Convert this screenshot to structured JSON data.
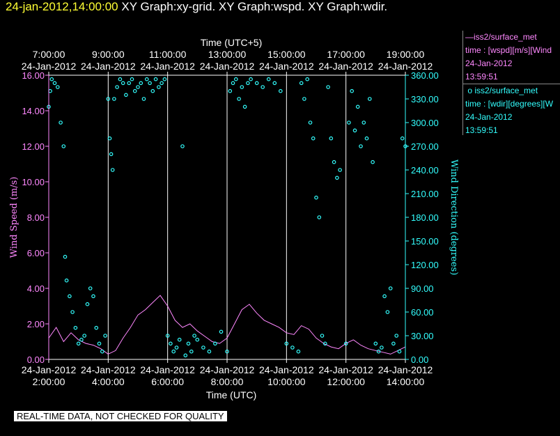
{
  "header": {
    "timestamp": "24-jan-2012,14:00:00",
    "graph_titles": [
      "XY Graph:xy-grid.",
      "XY Graph:wspd.",
      "XY Graph:wdir."
    ]
  },
  "quality_banner": "REAL-TIME DATA, NOT CHECKED FOR QUALITY",
  "legend": {
    "wspd": {
      "title": "iss2/surface_met",
      "expr": "time : [wspd][m/s][Wind",
      "date": "24-Jan-2012",
      "time": "13:59:51"
    },
    "wdir": {
      "title": "iss2/surface_met",
      "expr": "time : [wdir][degrees][W",
      "date": "24-Jan-2012",
      "time": "13:59:51"
    }
  },
  "colors": {
    "wspd": "#ff88ff",
    "wdir": "#33ffff",
    "grid": "#ffffff",
    "background": "#000000"
  },
  "chart_data": {
    "type": "line",
    "top_axis": {
      "label": "Time (UTC+5)",
      "ticks": [
        {
          "time": "7:00:00",
          "date": "24-Jan-2012"
        },
        {
          "time": "9:00:00",
          "date": "24-Jan-2012"
        },
        {
          "time": "11:00:00",
          "date": "24-Jan-2012"
        },
        {
          "time": "13:00:00",
          "date": "24-Jan-2012"
        },
        {
          "time": "15:00:00",
          "date": "24-Jan-2012"
        },
        {
          "time": "17:00:00",
          "date": "24-Jan-2012"
        },
        {
          "time": "19:00:00",
          "date": "24-Jan-2012"
        }
      ]
    },
    "bottom_axis": {
      "label": "Time (UTC)",
      "ticks": [
        {
          "time": "2:00:00",
          "date": "24-Jan-2012"
        },
        {
          "time": "4:00:00",
          "date": "24-Jan-2012"
        },
        {
          "time": "6:00:00",
          "date": "24-Jan-2012"
        },
        {
          "time": "8:00:00",
          "date": "24-Jan-2012"
        },
        {
          "time": "10:00:00",
          "date": "24-Jan-2012"
        },
        {
          "time": "12:00:00",
          "date": "24-Jan-2012"
        },
        {
          "time": "14:00:00",
          "date": "24-Jan-2012"
        }
      ]
    },
    "xlim_utc_hours": [
      2,
      14
    ],
    "left_axis": {
      "label": "Wind Speed (m/s)",
      "range": [
        0,
        16
      ],
      "ticks": [
        "0.00",
        "2.00",
        "4.00",
        "6.00",
        "8.00",
        "10.00",
        "12.00",
        "14.00",
        "16.00"
      ]
    },
    "right_axis": {
      "label": "Wind Direction (degrees)",
      "range": [
        0,
        360
      ],
      "ticks": [
        "0.00",
        "30.00",
        "60.00",
        "90.00",
        "120.00",
        "150.00",
        "180.00",
        "210.00",
        "240.00",
        "270.00",
        "300.00",
        "330.00",
        "360.00"
      ]
    },
    "grid_vertical_hours": [
      4,
      6,
      8,
      10,
      12
    ],
    "series": [
      {
        "name": "iss2/surface_met wspd",
        "style": "line",
        "unit": "m/s",
        "x": [
          2.0,
          2.25,
          2.5,
          2.75,
          3.0,
          3.25,
          3.5,
          3.75,
          4.0,
          4.25,
          4.5,
          4.75,
          5.0,
          5.25,
          5.5,
          5.75,
          6.0,
          6.25,
          6.5,
          6.75,
          7.0,
          7.25,
          7.5,
          7.75,
          8.0,
          8.25,
          8.5,
          8.75,
          9.0,
          9.25,
          9.5,
          9.75,
          10.0,
          10.25,
          10.5,
          10.75,
          11.0,
          11.25,
          11.5,
          11.75,
          12.0,
          12.25,
          12.5,
          12.75,
          13.0,
          13.25,
          13.5,
          13.75,
          14.0
        ],
        "y": [
          1.2,
          1.8,
          1.0,
          1.5,
          1.1,
          0.9,
          0.8,
          0.6,
          0.3,
          0.5,
          1.2,
          1.8,
          2.5,
          2.8,
          3.2,
          3.6,
          3.0,
          2.2,
          1.8,
          2.0,
          1.6,
          1.3,
          1.0,
          0.9,
          1.2,
          2.0,
          2.8,
          3.1,
          2.6,
          2.2,
          2.0,
          1.8,
          1.5,
          1.4,
          1.9,
          1.7,
          1.2,
          0.9,
          0.7,
          0.6,
          0.9,
          1.1,
          0.8,
          0.6,
          0.5,
          0.4,
          0.3,
          0.5,
          0.7
        ]
      },
      {
        "name": "iss2/surface_met wdir",
        "style": "markers",
        "unit": "degrees",
        "x": [
          2.0,
          2.05,
          2.1,
          2.2,
          2.3,
          2.4,
          2.5,
          2.55,
          2.6,
          2.7,
          2.8,
          2.9,
          3.0,
          3.1,
          3.2,
          3.3,
          3.4,
          3.5,
          3.6,
          3.7,
          3.8,
          3.9,
          4.0,
          4.05,
          4.1,
          4.15,
          4.2,
          4.3,
          4.4,
          4.5,
          4.6,
          4.7,
          4.8,
          4.9,
          5.0,
          5.1,
          5.2,
          5.3,
          5.4,
          5.5,
          5.6,
          5.7,
          5.8,
          5.9,
          6.0,
          6.1,
          6.2,
          6.3,
          6.4,
          6.5,
          6.6,
          6.7,
          6.8,
          6.9,
          7.0,
          7.2,
          7.4,
          7.6,
          7.8,
          8.0,
          8.1,
          8.2,
          8.3,
          8.4,
          8.5,
          8.6,
          8.7,
          8.8,
          9.0,
          9.2,
          9.4,
          9.6,
          9.8,
          10.0,
          10.2,
          10.4,
          10.5,
          10.6,
          10.7,
          10.8,
          10.9,
          11.0,
          11.1,
          11.2,
          11.3,
          11.4,
          11.5,
          11.6,
          11.7,
          11.8,
          12.0,
          12.1,
          12.2,
          12.3,
          12.4,
          12.5,
          12.6,
          12.7,
          12.8,
          12.9,
          13.0,
          13.1,
          13.2,
          13.3,
          13.4,
          13.5,
          13.6,
          13.7,
          13.8,
          13.9,
          14.0
        ],
        "y": [
          320,
          340,
          355,
          350,
          345,
          300,
          270,
          130,
          100,
          80,
          60,
          40,
          20,
          25,
          30,
          70,
          90,
          80,
          40,
          20,
          10,
          30,
          330,
          280,
          260,
          240,
          330,
          345,
          355,
          350,
          335,
          350,
          355,
          340,
          345,
          350,
          330,
          355,
          350,
          340,
          355,
          345,
          350,
          355,
          30,
          20,
          10,
          15,
          25,
          270,
          5,
          20,
          10,
          30,
          25,
          15,
          10,
          20,
          35,
          10,
          340,
          350,
          355,
          330,
          345,
          320,
          350,
          355,
          350,
          345,
          355,
          350,
          340,
          20,
          15,
          10,
          350,
          330,
          355,
          300,
          280,
          205,
          180,
          30,
          20,
          345,
          280,
          250,
          230,
          240,
          20,
          300,
          340,
          290,
          320,
          270,
          300,
          280,
          330,
          250,
          20,
          10,
          15,
          80,
          60,
          90,
          20,
          30,
          10,
          280,
          270
        ]
      }
    ]
  }
}
